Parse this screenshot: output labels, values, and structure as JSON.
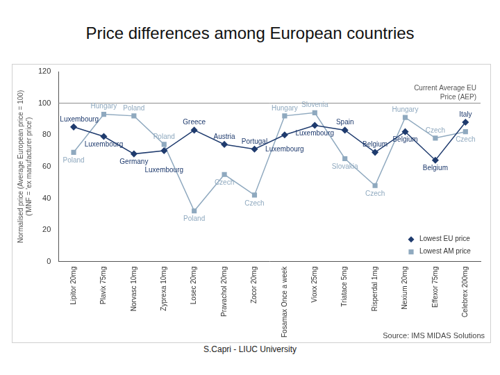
{
  "chart_data": {
    "type": "line",
    "title": "Price differences among European countries",
    "y_label": [
      "Normalised price (Average European price = 100)",
      "('MNF = 'ex manufacturer price')"
    ],
    "categories": [
      "Lipitor 20mg",
      "Plavix 75mg",
      "Norvasc 10mg",
      "Zyprexa 10mg",
      "Losec 20mg",
      "Pravachol 20mg",
      "Zocor 20mg",
      "Fosamax Once a week",
      "Vioxx 25mg",
      "Triatace 5mg",
      "Risperdal 1mg",
      "Nexium 20mg",
      "Effexor 75mg",
      "Celebrex 200mg"
    ],
    "series": [
      {
        "name": "Lowest EU price",
        "color": "#1f3b6e",
        "marker": "diamond",
        "values": [
          85,
          79,
          68,
          70,
          83,
          74,
          71,
          80,
          86,
          83,
          69,
          82,
          64,
          88
        ],
        "annotations": [
          "Luxembourg",
          "Luxembourg",
          "Germany",
          "Luxembourg",
          "Greece",
          "Austria",
          "Portugal",
          "Luxembourg",
          "Luxembourg",
          "Spain",
          "Belgium",
          "Belgium",
          "Belgium",
          "Italy"
        ]
      },
      {
        "name": "Lowest AM price",
        "color": "#8fa9bf",
        "marker": "square",
        "values": [
          69,
          93,
          92,
          74,
          32,
          55,
          42,
          92,
          94,
          65,
          48,
          91,
          78,
          82
        ],
        "annotations": [
          "Poland",
          "Hungary",
          "Poland",
          "Poland",
          "Poland",
          "Czech",
          "Czech",
          "Hungary",
          "Slovenia",
          "Slovakia",
          "Czech",
          "Hungary",
          "Czech",
          "Czech"
        ]
      }
    ],
    "ylim": [
      0,
      120
    ],
    "yticks": [
      0,
      20,
      40,
      60,
      80,
      100,
      120
    ],
    "grid": false,
    "legend": "lower right",
    "reference_line": {
      "value": 100,
      "label": [
        "Current Average EU",
        "Price (AEP)"
      ]
    },
    "source": "Source: IMS MIDAS Solutions",
    "footer": "S.Capri - LIUC University"
  }
}
